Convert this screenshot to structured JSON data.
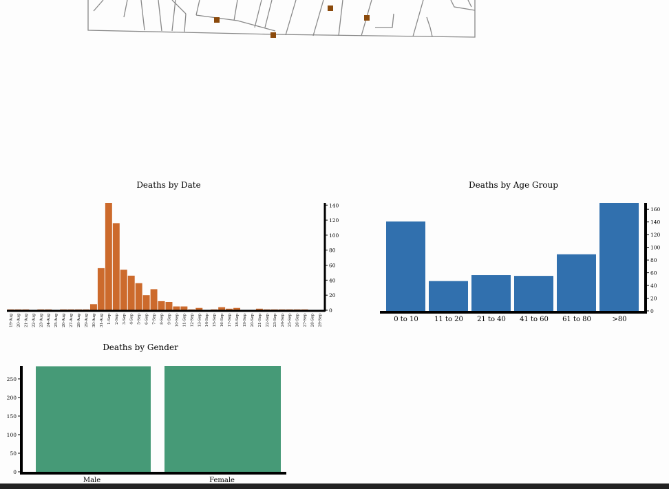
{
  "map": {
    "marker_color": "#8b4a0c",
    "street_color": "#888888"
  },
  "colors": {
    "date_bars": "#cc6a2c",
    "age_bars": "#3170ae",
    "gender_bars": "#469a77"
  },
  "chart_data": [
    {
      "id": "date",
      "type": "bar",
      "title": "Deaths by Date",
      "categories": [
        "19-Aug",
        "20-Aug",
        "21-Aug",
        "22-Aug",
        "23-Aug",
        "24-Aug",
        "25-Aug",
        "26-Aug",
        "27-Aug",
        "28-Aug",
        "29-Aug",
        "30-Aug",
        "31-Aug",
        "1-Sep",
        "2-Sep",
        "3-Sep",
        "4-Sep",
        "5-Sep",
        "6-Sep",
        "7-Sep",
        "8-Sep",
        "9-Sep",
        "10-Sep",
        "11-Sep",
        "12-Sep",
        "13-Sep",
        "14-Sep",
        "15-Sep",
        "16-Sep",
        "17-Sep",
        "18-Sep",
        "19-Sep",
        "20-Sep",
        "21-Sep",
        "22-Sep",
        "23-Sep",
        "24-Sep",
        "25-Sep",
        "26-Sep",
        "27-Sep",
        "28-Sep",
        "29-Sep"
      ],
      "values": [
        1,
        1,
        1,
        0,
        1,
        1,
        0,
        1,
        1,
        1,
        1,
        8,
        56,
        143,
        116,
        54,
        46,
        36,
        20,
        28,
        12,
        11,
        5,
        5,
        1,
        3,
        0,
        1,
        4,
        2,
        3,
        0,
        0,
        2,
        1,
        1,
        1,
        1,
        1,
        1,
        0,
        0
      ],
      "yaxis": {
        "position": "right",
        "ylim": [
          0,
          143
        ],
        "ticks": [
          0,
          20,
          40,
          60,
          80,
          100,
          120,
          140
        ]
      }
    },
    {
      "id": "age",
      "type": "bar",
      "title": "Deaths by Age Group",
      "categories": [
        "0 to 10",
        "11 to 20",
        "21 to 40",
        "41 to 60",
        "61 to 80",
        ">80"
      ],
      "values": [
        120,
        40,
        48,
        47,
        76,
        145
      ],
      "yaxis": {
        "position": "right",
        "ylim": [
          0,
          145
        ],
        "ticks": [
          0,
          20,
          40,
          60,
          80,
          100,
          120,
          140,
          160
        ]
      }
    },
    {
      "id": "gender",
      "type": "bar",
      "title": "Deaths by Gender",
      "categories": [
        "Male",
        "Female"
      ],
      "values": [
        284,
        285
      ],
      "yaxis": {
        "position": "left",
        "ylim": [
          0,
          285
        ],
        "ticks": [
          0,
          50,
          100,
          150,
          200,
          250
        ]
      }
    }
  ]
}
